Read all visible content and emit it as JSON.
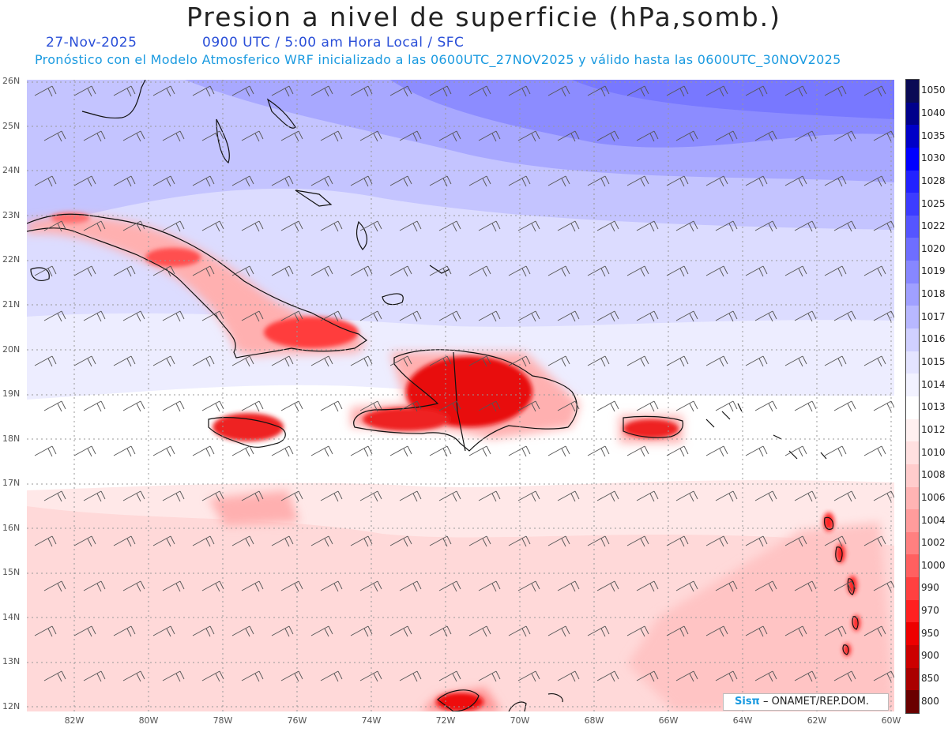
{
  "title": "Presion a nivel de superficie (hPa,somb.)",
  "date": "27-Nov-2025",
  "time_info": "0900 UTC / 5:00 am Hora Local / SFC",
  "model_info": "Pronóstico con el Modelo Atmosferico WRF inicializado a las 0600UTC_27NOV2025 y válido hasta las  0600UTC_30NOV2025",
  "lat_labels": [
    "26N",
    "25N",
    "24N",
    "23N",
    "22N",
    "21N",
    "20N",
    "19N",
    "18N",
    "17N",
    "16N",
    "15N",
    "14N",
    "13N",
    "12N"
  ],
  "lon_labels": [
    "82W",
    "80W",
    "78W",
    "76W",
    "74W",
    "72W",
    "70W",
    "68W",
    "66W",
    "64W",
    "62W",
    "60W"
  ],
  "colorbar": {
    "levels": [
      "1050",
      "1040",
      "1035",
      "1030",
      "1028",
      "1025",
      "1022",
      "1020",
      "1019",
      "1018",
      "1017",
      "1016",
      "1015",
      "1014",
      "1013",
      "1012",
      "1010",
      "1008",
      "1006",
      "1004",
      "1002",
      "1000",
      "990",
      "970",
      "950",
      "900",
      "850",
      "800"
    ],
    "colors": [
      "#0a0a55",
      "#00008b",
      "#0000c8",
      "#0000ff",
      "#2222ff",
      "#3c3cff",
      "#5555ff",
      "#6e6eff",
      "#8787ff",
      "#a0a0ff",
      "#b8b8ff",
      "#d0d0ff",
      "#e4e4ff",
      "#f2f2ff",
      "#ffffff",
      "#fff0f0",
      "#ffe0e0",
      "#ffcccc",
      "#ffb4b4",
      "#ff9c9c",
      "#ff8080",
      "#ff6060",
      "#ff4040",
      "#ff2020",
      "#ee0000",
      "#cc0000",
      "#aa0000",
      "#6a0000"
    ]
  },
  "credit": {
    "logo": "Sisπ",
    "text": "– ONAMET/REP.DOM."
  }
}
